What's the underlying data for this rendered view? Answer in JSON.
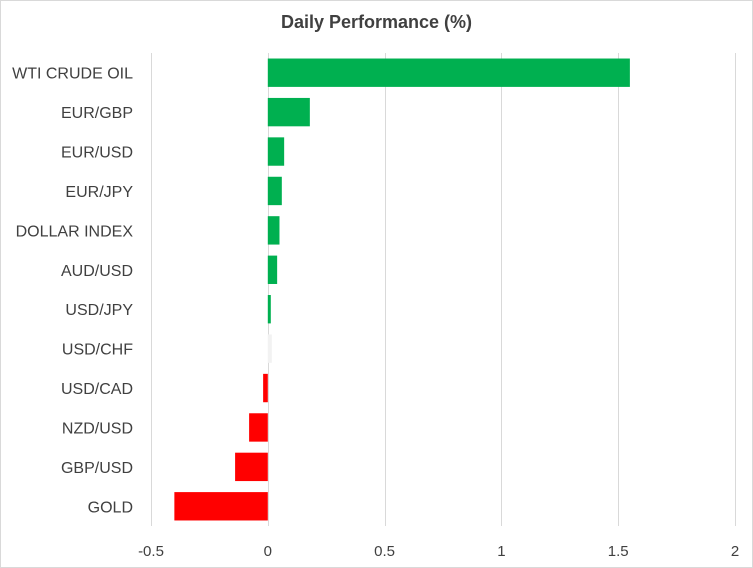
{
  "chart_data": {
    "type": "bar",
    "orientation": "horizontal",
    "title": "Daily Performance (%)",
    "xlabel": "",
    "ylabel": "",
    "xlim": [
      -0.5,
      2
    ],
    "x_ticks": [
      -0.5,
      0,
      0.5,
      1,
      1.5,
      2
    ],
    "x_tick_labels": [
      "-0.5",
      "0",
      "0.5",
      "1",
      "1.5",
      "2"
    ],
    "grid": "vertical",
    "categories": [
      "WTI CRUDE OIL",
      "EUR/GBP",
      "EUR/USD",
      "EUR/JPY",
      "DOLLAR INDEX",
      "AUD/USD",
      "USD/JPY",
      "USD/CHF",
      "USD/CAD",
      "NZD/USD",
      "GBP/USD",
      "GOLD"
    ],
    "values": [
      1.55,
      0.18,
      0.07,
      0.06,
      0.05,
      0.04,
      0.01,
      0.003,
      -0.02,
      -0.08,
      -0.14,
      -0.4
    ],
    "colors": {
      "positive": "#00b050",
      "negative": "#ff0000",
      "neutral": "#f2f2f2",
      "grid": "#d9d9d9",
      "text": "#404040"
    }
  }
}
